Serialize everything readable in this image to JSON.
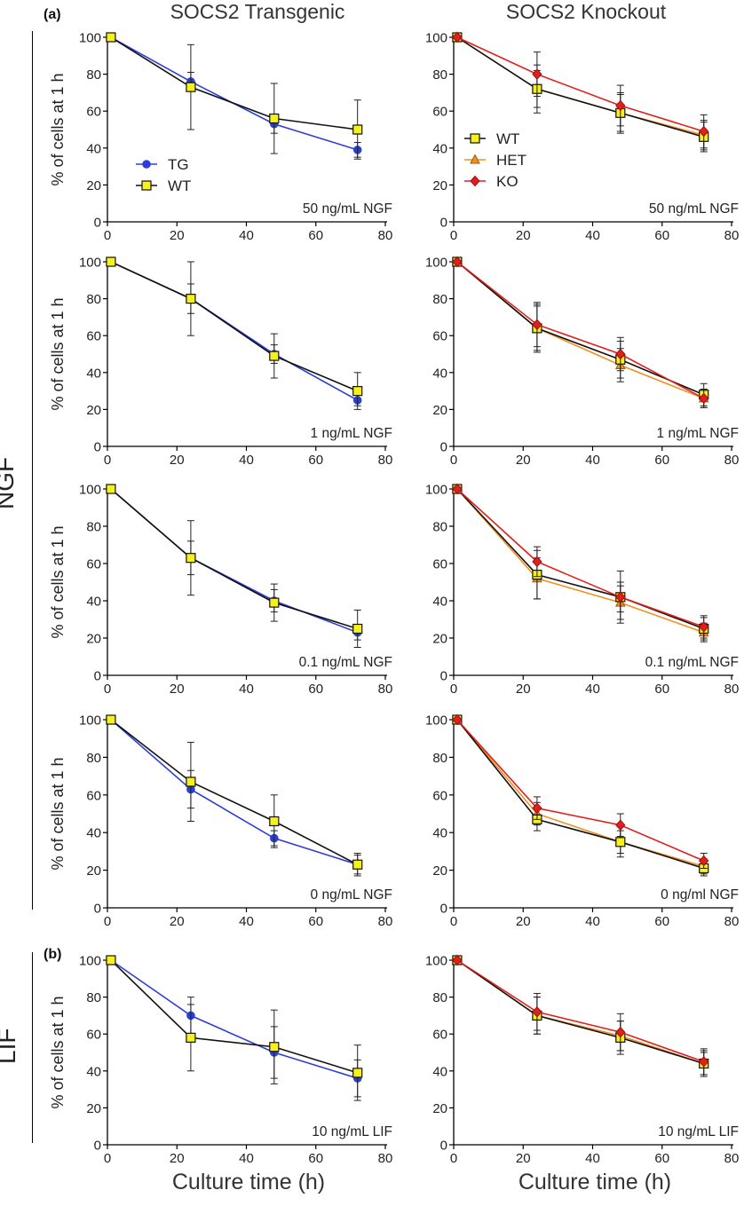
{
  "column_titles": [
    "SOCS2 Transgenic",
    "SOCS2 Knockout"
  ],
  "panel_tags": {
    "a": "(a)",
    "b": "(b)"
  },
  "side_labels": {
    "ngf": "NGF",
    "lif": "LIF"
  },
  "xlabel": "Culture time (h)",
  "ylabel": "% of cells at 1 h",
  "colors": {
    "TG": "#2b3ed8",
    "WT_line": "#111111",
    "WT_fill": "#f5f01e",
    "HET": "#f0901e",
    "KO": "#e0201e"
  },
  "chart_data": [
    {
      "type": "line",
      "panel": "TG-50",
      "condition": "50 ng/mL NGF",
      "xlim": [
        0,
        80
      ],
      "ylim": [
        0,
        100
      ],
      "legend": [
        "TG",
        "WT"
      ],
      "series": [
        {
          "name": "TG",
          "x": [
            1,
            24,
            48,
            72
          ],
          "y": [
            100,
            76,
            53,
            39
          ],
          "err": [
            0,
            5,
            5,
            4
          ]
        },
        {
          "name": "WT",
          "x": [
            1,
            24,
            48,
            72
          ],
          "y": [
            100,
            73,
            56,
            50
          ],
          "err": [
            0,
            23,
            19,
            16
          ]
        }
      ]
    },
    {
      "type": "line",
      "panel": "KO-50",
      "condition": "50 ng/mL NGF",
      "xlim": [
        0,
        80
      ],
      "ylim": [
        0,
        100
      ],
      "legend": [
        "WT",
        "HET",
        "KO"
      ],
      "series": [
        {
          "name": "WT",
          "x": [
            1,
            24,
            48,
            72
          ],
          "y": [
            100,
            72,
            59,
            46
          ],
          "err": [
            0,
            13,
            11,
            8
          ]
        },
        {
          "name": "HET",
          "x": [
            1,
            24,
            48,
            72
          ],
          "y": [
            100,
            72,
            59,
            47
          ],
          "err": [
            0,
            10,
            10,
            8
          ]
        },
        {
          "name": "KO",
          "x": [
            1,
            24,
            48,
            72
          ],
          "y": [
            100,
            80,
            63,
            49
          ],
          "err": [
            0,
            12,
            11,
            9
          ]
        }
      ]
    },
    {
      "type": "line",
      "panel": "TG-1",
      "condition": "1 ng/mL NGF",
      "xlim": [
        0,
        80
      ],
      "ylim": [
        0,
        100
      ],
      "series": [
        {
          "name": "TG",
          "x": [
            1,
            24,
            48,
            72
          ],
          "y": [
            100,
            80,
            50,
            25
          ],
          "err": [
            0,
            8,
            5,
            3
          ]
        },
        {
          "name": "WT",
          "x": [
            1,
            24,
            48,
            72
          ],
          "y": [
            100,
            80,
            49,
            30
          ],
          "err": [
            0,
            20,
            12,
            10
          ]
        }
      ]
    },
    {
      "type": "line",
      "panel": "KO-1",
      "condition": "1 ng/mL NGF",
      "xlim": [
        0,
        80
      ],
      "ylim": [
        0,
        100
      ],
      "series": [
        {
          "name": "WT",
          "x": [
            1,
            24,
            48,
            72
          ],
          "y": [
            100,
            64,
            47,
            28
          ],
          "err": [
            0,
            13,
            10,
            6
          ]
        },
        {
          "name": "HET",
          "x": [
            1,
            24,
            48,
            72
          ],
          "y": [
            100,
            64,
            44,
            26
          ],
          "err": [
            0,
            12,
            9,
            5
          ]
        },
        {
          "name": "KO",
          "x": [
            1,
            24,
            48,
            72
          ],
          "y": [
            100,
            66,
            50,
            26
          ],
          "err": [
            0,
            12,
            9,
            5
          ]
        }
      ]
    },
    {
      "type": "line",
      "panel": "TG-0.1",
      "condition": "0.1 ng/mL NGF",
      "xlim": [
        0,
        80
      ],
      "ylim": [
        0,
        100
      ],
      "series": [
        {
          "name": "TG",
          "x": [
            1,
            24,
            48,
            72
          ],
          "y": [
            100,
            63,
            40,
            23
          ],
          "err": [
            0,
            9,
            6,
            4
          ]
        },
        {
          "name": "WT",
          "x": [
            1,
            24,
            48,
            72
          ],
          "y": [
            100,
            63,
            39,
            25
          ],
          "err": [
            0,
            20,
            10,
            10
          ]
        }
      ]
    },
    {
      "type": "line",
      "panel": "KO-0.1",
      "condition": "0.1 ng/mL NGF",
      "xlim": [
        0,
        80
      ],
      "ylim": [
        0,
        100
      ],
      "series": [
        {
          "name": "WT",
          "x": [
            1,
            24,
            48,
            72
          ],
          "y": [
            100,
            54,
            42,
            25
          ],
          "err": [
            0,
            13,
            14,
            6
          ]
        },
        {
          "name": "HET",
          "x": [
            1,
            24,
            48,
            72
          ],
          "y": [
            100,
            52,
            39,
            23
          ],
          "err": [
            0,
            11,
            9,
            5
          ]
        },
        {
          "name": "KO",
          "x": [
            1,
            24,
            48,
            72
          ],
          "y": [
            100,
            61,
            42,
            26
          ],
          "err": [
            0,
            8,
            8,
            6
          ]
        }
      ]
    },
    {
      "type": "line",
      "panel": "TG-0",
      "condition": "0 ng/mL NGF",
      "xlim": [
        0,
        80
      ],
      "ylim": [
        0,
        100
      ],
      "series": [
        {
          "name": "TG",
          "x": [
            1,
            24,
            48,
            72
          ],
          "y": [
            100,
            63,
            37,
            23
          ],
          "err": [
            0,
            10,
            4,
            5
          ]
        },
        {
          "name": "WT",
          "x": [
            1,
            24,
            48,
            72
          ],
          "y": [
            100,
            67,
            46,
            23
          ],
          "err": [
            0,
            21,
            14,
            6
          ]
        }
      ]
    },
    {
      "type": "line",
      "panel": "KO-0",
      "condition": "0 ng/ml NGF",
      "xlim": [
        0,
        80
      ],
      "ylim": [
        0,
        100
      ],
      "series": [
        {
          "name": "WT",
          "x": [
            1,
            24,
            48,
            72
          ],
          "y": [
            100,
            47,
            35,
            21
          ],
          "err": [
            0,
            6,
            8,
            4
          ]
        },
        {
          "name": "HET",
          "x": [
            1,
            24,
            48,
            72
          ],
          "y": [
            100,
            50,
            35,
            22
          ],
          "err": [
            0,
            6,
            6,
            4
          ]
        },
        {
          "name": "KO",
          "x": [
            1,
            24,
            48,
            72
          ],
          "y": [
            100,
            53,
            44,
            25
          ],
          "err": [
            0,
            6,
            6,
            4
          ]
        }
      ]
    },
    {
      "type": "line",
      "panel": "TG-LIF",
      "condition": "10 ng/mL LIF",
      "xlim": [
        0,
        80
      ],
      "ylim": [
        0,
        100
      ],
      "series": [
        {
          "name": "TG",
          "x": [
            1,
            24,
            48,
            72
          ],
          "y": [
            100,
            70,
            50,
            36
          ],
          "err": [
            0,
            10,
            14,
            10
          ]
        },
        {
          "name": "WT",
          "x": [
            1,
            24,
            48,
            72
          ],
          "y": [
            100,
            58,
            53,
            39
          ],
          "err": [
            0,
            18,
            20,
            15
          ]
        }
      ]
    },
    {
      "type": "line",
      "panel": "KO-LIF",
      "condition": "10 ng/mL LIF",
      "xlim": [
        0,
        80
      ],
      "ylim": [
        0,
        100
      ],
      "series": [
        {
          "name": "WT",
          "x": [
            1,
            24,
            48,
            72
          ],
          "y": [
            100,
            70,
            58,
            44
          ],
          "err": [
            0,
            10,
            9,
            7
          ]
        },
        {
          "name": "HET",
          "x": [
            1,
            24,
            48,
            72
          ],
          "y": [
            100,
            70,
            59,
            44
          ],
          "err": [
            0,
            10,
            8,
            6
          ]
        },
        {
          "name": "KO",
          "x": [
            1,
            24,
            48,
            72
          ],
          "y": [
            100,
            72,
            61,
            45
          ],
          "err": [
            0,
            10,
            10,
            7
          ]
        }
      ]
    }
  ]
}
